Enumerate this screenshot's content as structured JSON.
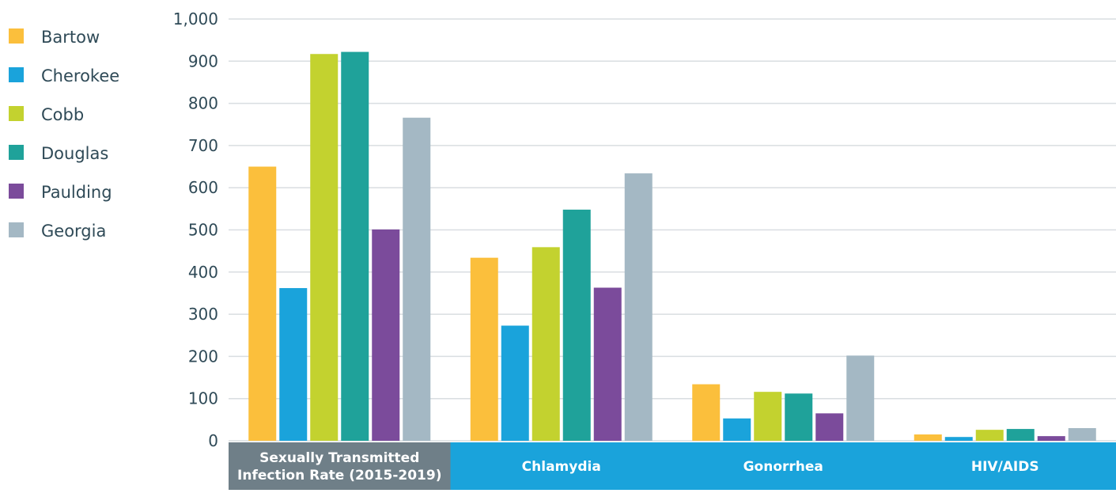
{
  "chart_data": {
    "type": "bar",
    "title": "",
    "xlabel": "",
    "ylabel": "",
    "ylim": [
      0,
      1000
    ],
    "yticks": [
      0,
      100,
      200,
      300,
      400,
      500,
      600,
      700,
      800,
      900,
      1000
    ],
    "ytick_labels": [
      "0",
      "100",
      "200",
      "300",
      "400",
      "500",
      "600",
      "700",
      "800",
      "900",
      "1,000"
    ],
    "grid": true,
    "legend_position": "left",
    "categories": [
      {
        "lines": [
          "Sexually Transmitted",
          "Infection Rate (2015-2019)"
        ],
        "band_color": "#6f7f88"
      },
      {
        "lines": [
          "Chlamydia"
        ],
        "band_color": "#1aa3db"
      },
      {
        "lines": [
          "Gonorrhea"
        ],
        "band_color": "#1aa3db"
      },
      {
        "lines": [
          "HIV/AIDS"
        ],
        "band_color": "#1aa3db"
      }
    ],
    "series": [
      {
        "name": "Bartow",
        "color": "#fbbf3c",
        "values": [
          650,
          434,
          134,
          15
        ]
      },
      {
        "name": "Cherokee",
        "color": "#1aa3db",
        "values": [
          362,
          273,
          53,
          9
        ]
      },
      {
        "name": "Cobb",
        "color": "#c3d22f",
        "values": [
          917,
          459,
          116,
          26
        ]
      },
      {
        "name": "Douglas",
        "color": "#1fa29a",
        "values": [
          922,
          548,
          112,
          28
        ]
      },
      {
        "name": "Paulding",
        "color": "#7b4b9b",
        "values": [
          501,
          363,
          65,
          11
        ]
      },
      {
        "name": "Georgia",
        "color": "#a4b8c4",
        "values": [
          766,
          634,
          202,
          30
        ]
      }
    ],
    "gridline_color": "#d9dee1",
    "text_color": "#2f4a57"
  }
}
